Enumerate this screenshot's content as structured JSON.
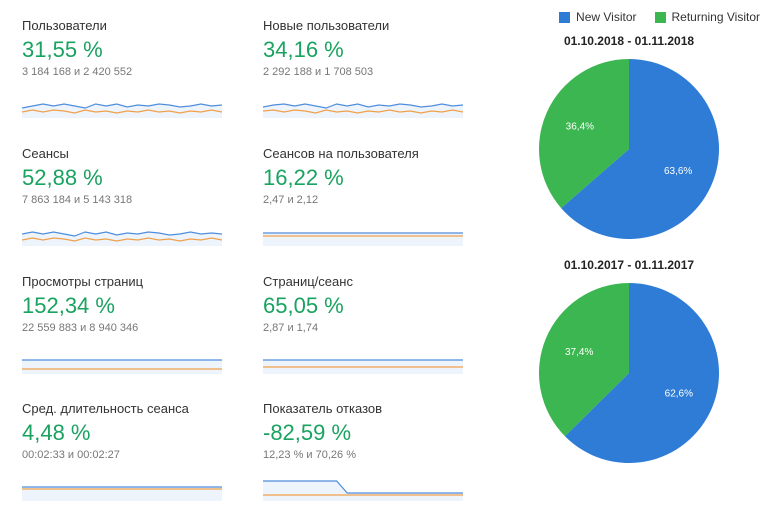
{
  "colors": {
    "positive": "#1aa260",
    "negative": "#1aa260",
    "line1": "#4f8edc",
    "line2": "#f0a04b",
    "spark_fill": "#eef4fb",
    "pie_new": "#2e7cd6",
    "pie_ret": "#3cb650",
    "text_dark": "#212121",
    "text_muted": "#777777"
  },
  "metrics": [
    {
      "title": "Пользователи",
      "value": "31,55 %",
      "value_color": "#1aa260",
      "sub": "3 184 168 и 2 420 552",
      "spark": {
        "a": [
          24,
          22,
          20,
          22,
          20,
          22,
          24,
          20,
          22,
          20,
          23,
          21,
          22,
          20,
          21,
          23,
          22,
          20,
          22,
          21
        ],
        "b": [
          28,
          26,
          28,
          26,
          27,
          29,
          26,
          28,
          27,
          29,
          27,
          28,
          26,
          28,
          27,
          29,
          27,
          28,
          26,
          28
        ]
      }
    },
    {
      "title": "Новые пользователи",
      "value": "34,16 %",
      "value_color": "#1aa260",
      "sub": "2 292 188 и 1 708 503",
      "spark": {
        "a": [
          23,
          21,
          20,
          22,
          20,
          22,
          24,
          20,
          22,
          20,
          23,
          21,
          22,
          20,
          21,
          23,
          22,
          20,
          22,
          21
        ],
        "b": [
          27,
          26,
          28,
          26,
          27,
          29,
          26,
          28,
          27,
          29,
          27,
          28,
          26,
          28,
          27,
          29,
          27,
          28,
          26,
          28
        ]
      }
    },
    {
      "title": "Сеансы",
      "value": "52,88 %",
      "value_color": "#1aa260",
      "sub": "7 863 184 и 5 143 318",
      "spark": {
        "a": [
          22,
          20,
          22,
          20,
          22,
          24,
          20,
          22,
          20,
          23,
          21,
          22,
          20,
          21,
          23,
          22,
          20,
          22,
          21,
          22
        ],
        "b": [
          28,
          26,
          28,
          26,
          27,
          29,
          26,
          28,
          27,
          29,
          27,
          28,
          26,
          28,
          27,
          29,
          27,
          28,
          26,
          28
        ]
      }
    },
    {
      "title": "Сеансов на пользователя",
      "value": "16,22 %",
      "value_color": "#1aa260",
      "sub": "2,47 и 2,12",
      "spark": {
        "a": [
          21,
          21,
          21,
          21,
          21,
          21,
          21,
          21,
          21,
          21,
          21,
          21,
          21,
          21,
          21,
          21,
          21,
          21,
          21,
          21
        ],
        "b": [
          24,
          24,
          24,
          24,
          24,
          24,
          24,
          24,
          24,
          24,
          24,
          24,
          24,
          24,
          24,
          24,
          24,
          24,
          24,
          24
        ]
      }
    },
    {
      "title": "Просмотры страниц",
      "value": "152,34 %",
      "value_color": "#1aa260",
      "sub": "22 559 883 и 8 940 346",
      "spark": {
        "a": [
          20,
          20,
          20,
          20,
          20,
          20,
          20,
          20,
          20,
          20,
          20,
          20,
          20,
          20,
          20,
          20,
          20,
          20,
          20,
          20
        ],
        "b": [
          29,
          29,
          29,
          29,
          29,
          29,
          29,
          29,
          29,
          29,
          29,
          29,
          29,
          29,
          29,
          29,
          29,
          29,
          29,
          29
        ]
      }
    },
    {
      "title": "Страниц/сеанс",
      "value": "65,05 %",
      "value_color": "#1aa260",
      "sub": "2,87 и 1,74",
      "spark": {
        "a": [
          20,
          20,
          20,
          20,
          20,
          20,
          20,
          20,
          20,
          20,
          20,
          20,
          20,
          20,
          20,
          20,
          20,
          20,
          20,
          20
        ],
        "b": [
          27,
          27,
          27,
          27,
          27,
          27,
          27,
          27,
          27,
          27,
          27,
          27,
          27,
          27,
          27,
          27,
          27,
          27,
          27,
          27
        ]
      }
    },
    {
      "title": "Сред. длительность сеанса",
      "value": "4,48 %",
      "value_color": "#1aa260",
      "sub": "00:02:33 и 00:02:27",
      "spark": {
        "a": [
          20,
          20,
          20,
          20,
          20,
          20,
          20,
          20,
          20,
          20,
          20,
          20,
          20,
          20,
          20,
          20,
          20,
          20,
          20,
          20
        ],
        "b": [
          22,
          22,
          22,
          22,
          22,
          22,
          22,
          22,
          22,
          22,
          22,
          22,
          22,
          22,
          22,
          22,
          22,
          22,
          22,
          22
        ]
      }
    },
    {
      "title": "Показатель отказов",
      "value": "-82,59 %",
      "value_color": "#1aa260",
      "sub": "12,23 % и 70,26 %",
      "spark": {
        "a": [
          14,
          14,
          14,
          14,
          14,
          14,
          14,
          14,
          26,
          26,
          26,
          26,
          26,
          26,
          26,
          26,
          26,
          26,
          26,
          26
        ],
        "b": [
          28,
          28,
          28,
          28,
          28,
          28,
          28,
          28,
          28,
          28,
          28,
          28,
          28,
          28,
          28,
          28,
          28,
          28,
          28,
          28
        ]
      }
    }
  ],
  "legend": {
    "new": "New Visitor",
    "ret": "Returning Visitor"
  },
  "pies": [
    {
      "title": "01.10.2018 - 01.11.2018",
      "new_pct": 63.6,
      "ret_pct": 36.4,
      "new_label": "63,6%",
      "ret_label": "36,4%"
    },
    {
      "title": "01.10.2017 - 01.11.2017",
      "new_pct": 62.6,
      "ret_pct": 37.4,
      "new_label": "62,6%",
      "ret_label": "37,4%"
    }
  ]
}
